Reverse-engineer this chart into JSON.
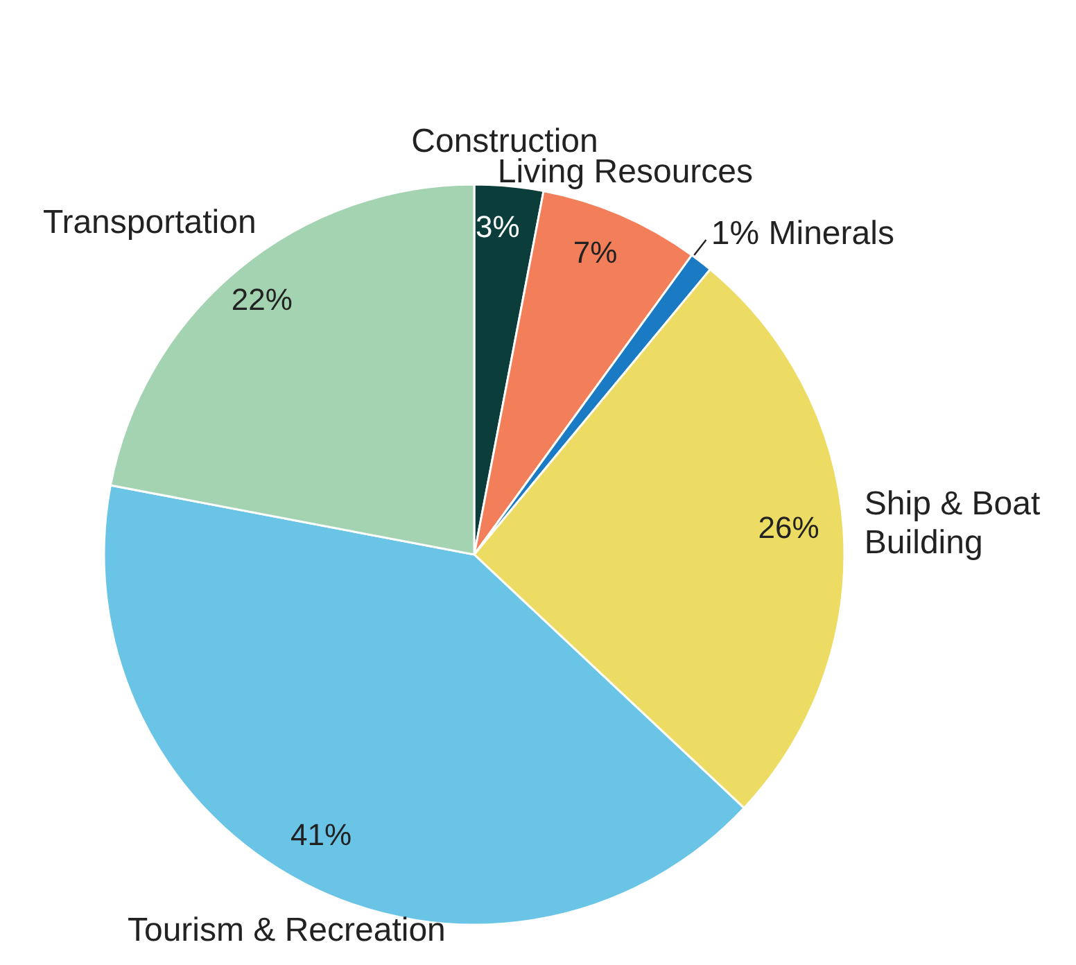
{
  "chart_data": {
    "type": "pie",
    "categories": [
      "Construction",
      "Living Resources",
      "Minerals",
      "Ship & Boat Building",
      "Tourism & Recreation",
      "Transportation"
    ],
    "values": [
      3,
      7,
      1,
      26,
      41,
      22
    ],
    "colors": [
      "#0b3d3a",
      "#f27f5a",
      "#1a7bc4",
      "#ecdc64",
      "#6ac4e6",
      "#a4d3b2"
    ],
    "value_labels": [
      "3%",
      "7%",
      "1%",
      "26%",
      "41%",
      "22%"
    ]
  }
}
